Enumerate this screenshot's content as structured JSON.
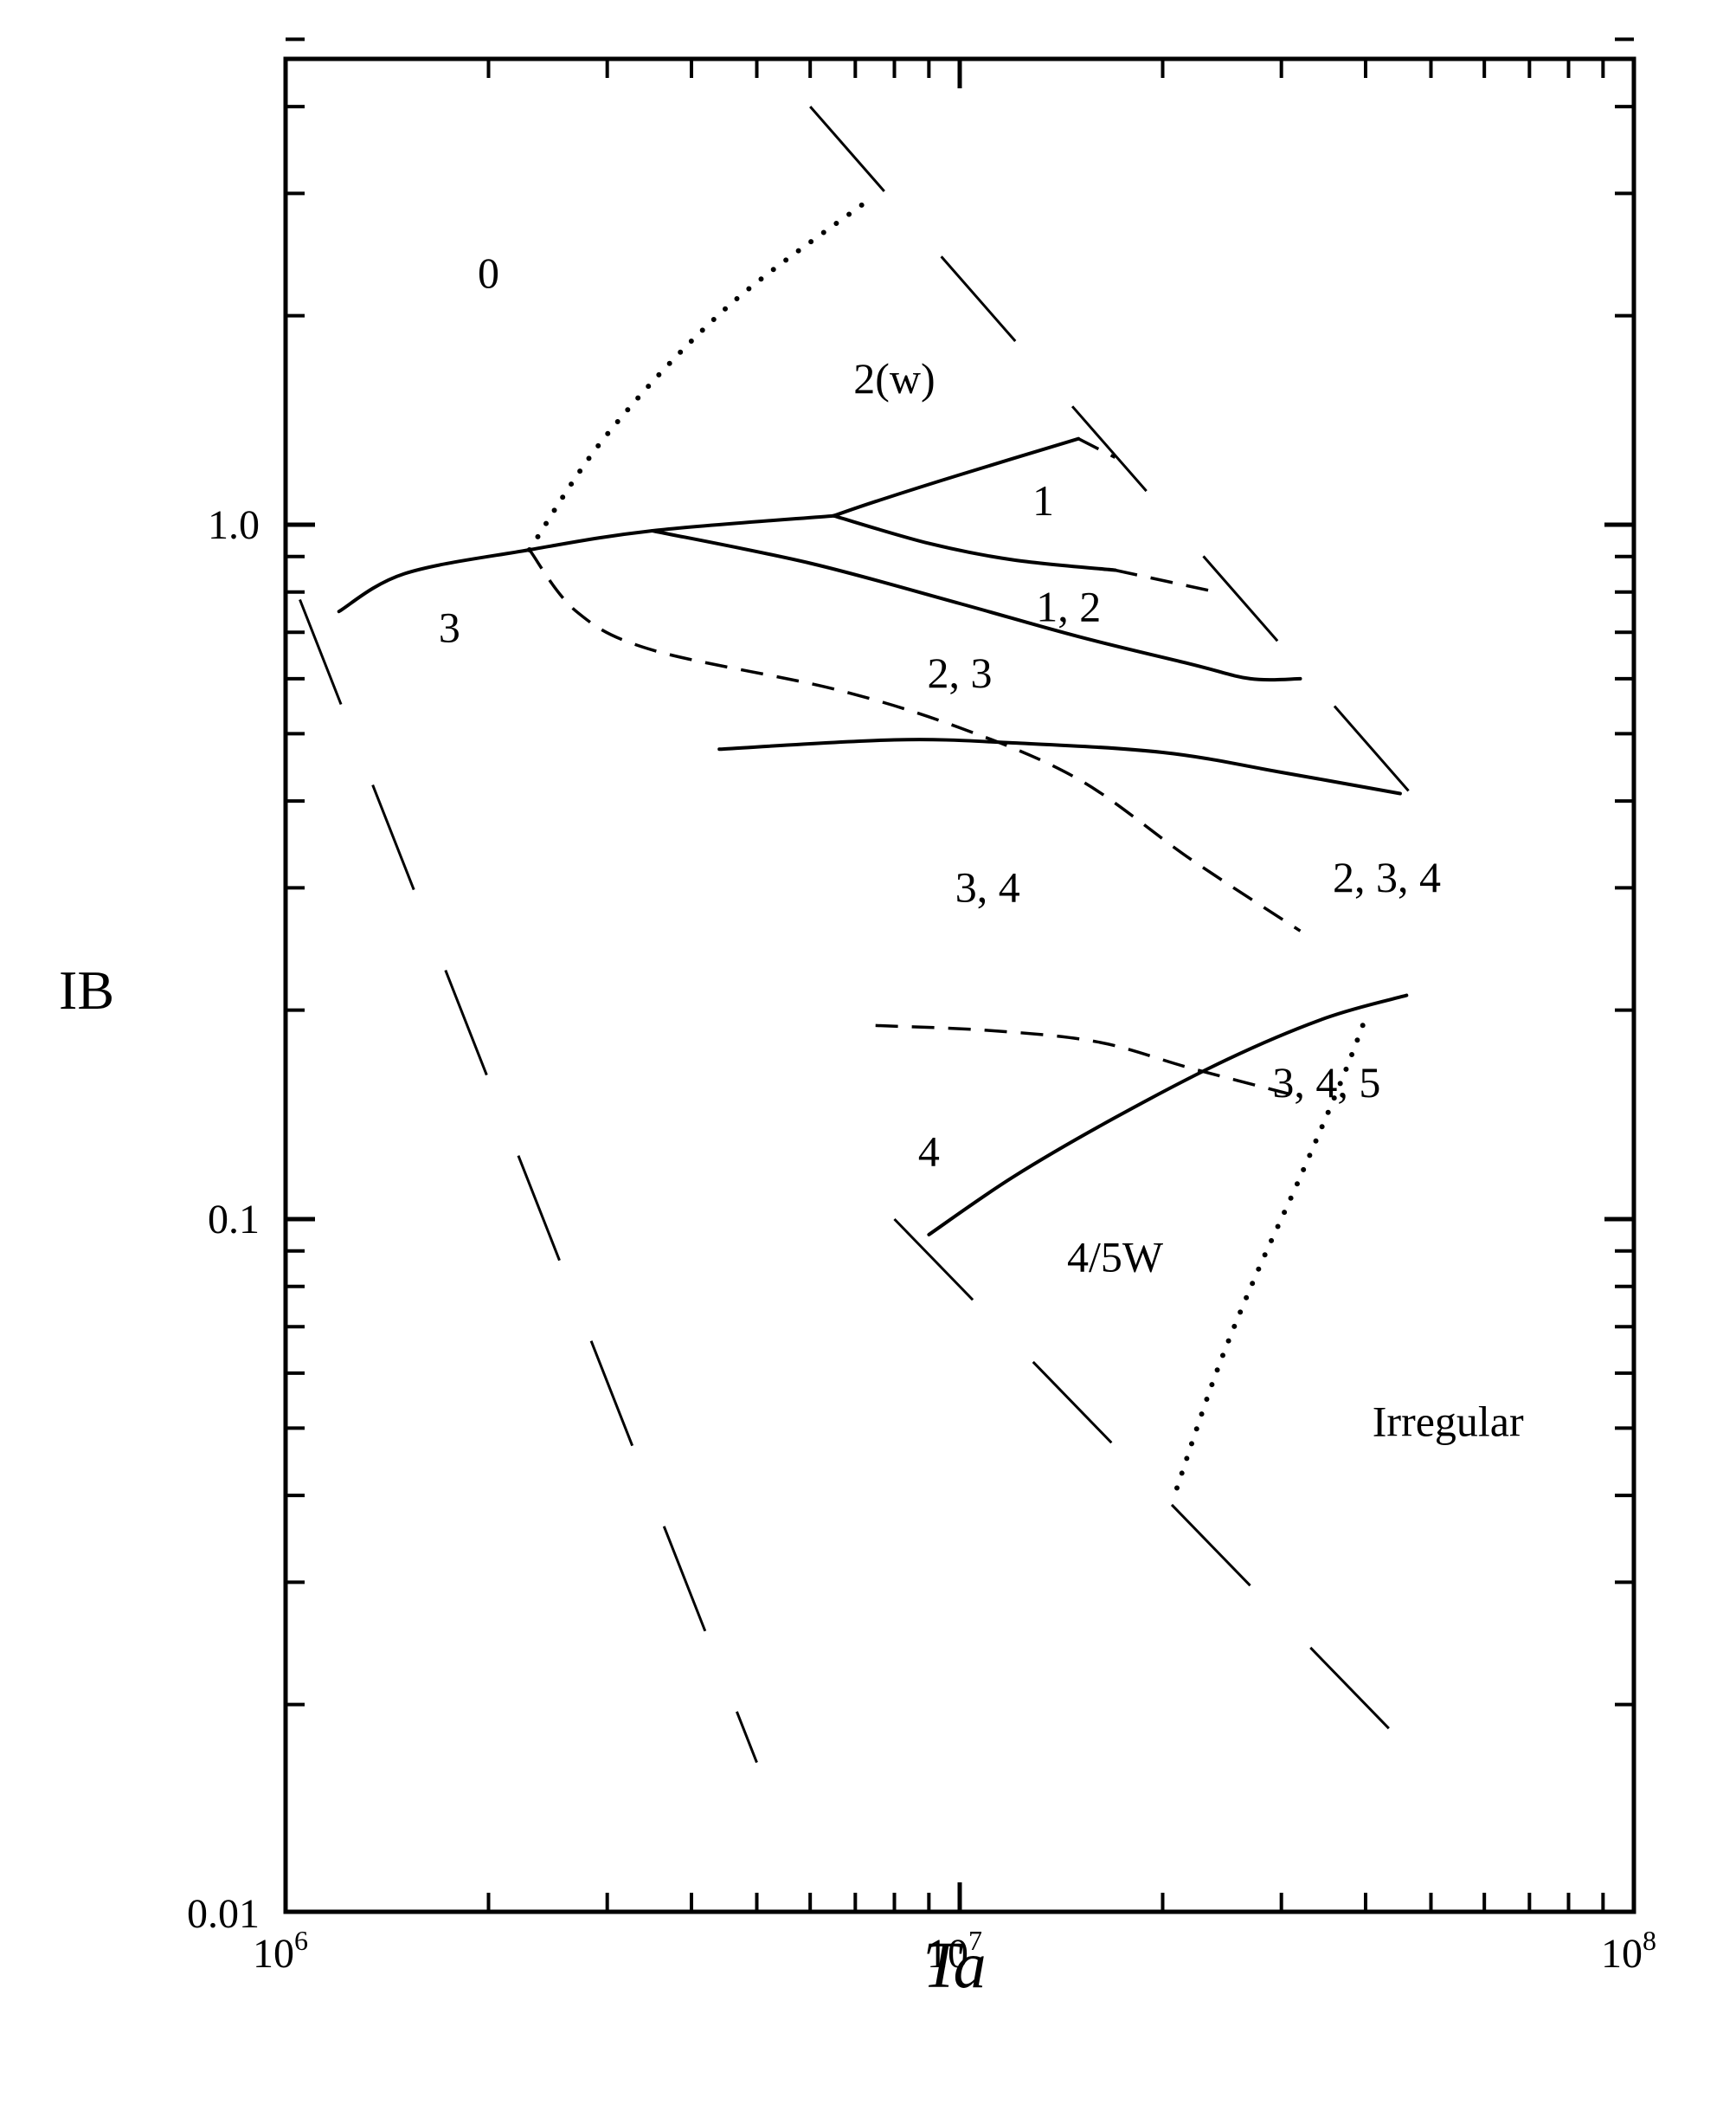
{
  "chart_data": {
    "type": "line",
    "xlabel": "Ta",
    "ylabel": "IB",
    "xscale": "log",
    "yscale": "log",
    "xlim": [
      1000000,
      100000000
    ],
    "ylim": [
      0.01,
      5.5
    ],
    "x_ticks": [
      {
        "value": 1000000,
        "base": "10",
        "exp": "6"
      },
      {
        "value": 10000000,
        "base": "10",
        "exp": "7"
      },
      {
        "value": 100000000,
        "base": "10",
        "exp": "8"
      }
    ],
    "y_ticks": [
      {
        "value": 0.01,
        "label": "0.01"
      },
      {
        "value": 0.1,
        "label": "0.1"
      },
      {
        "value": 1.0,
        "label": "1.0"
      }
    ],
    "grid": false,
    "curves": [
      {
        "style": "solid",
        "x": [
          1200000,
          1500000,
          2300000,
          3500000,
          6500000
        ],
        "y": [
          0.75,
          0.85,
          0.92,
          0.98,
          1.03
        ]
      },
      {
        "style": "solid",
        "x": [
          6500000,
          7500000,
          10000000,
          15000000
        ],
        "y": [
          1.03,
          1.08,
          1.18,
          1.33
        ]
      },
      {
        "style": "dashed",
        "x": [
          15000000,
          17000000
        ],
        "y": [
          1.33,
          1.25
        ]
      },
      {
        "style": "solid",
        "x": [
          6500000,
          9000000,
          12000000,
          17000000
        ],
        "y": [
          1.03,
          0.94,
          0.89,
          0.86
        ]
      },
      {
        "style": "dashed",
        "x": [
          17000000,
          24000000
        ],
        "y": [
          0.86,
          0.8
        ]
      },
      {
        "style": "solid",
        "x": [
          3500000,
          6000000,
          10000000,
          15000000,
          22000000,
          27000000,
          32000000
        ],
        "y": [
          0.98,
          0.88,
          0.77,
          0.69,
          0.63,
          0.6,
          0.6
        ]
      },
      {
        "style": "dashed",
        "x": [
          2300000,
          2700000,
          3500000,
          6500000,
          10000000,
          15000000,
          22000000,
          32000000
        ],
        "y": [
          0.92,
          0.75,
          0.66,
          0.58,
          0.51,
          0.43,
          0.33,
          0.26
        ]
      },
      {
        "style": "solid",
        "x": [
          4400000,
          8000000,
          12000000,
          20000000,
          30000000,
          45000000
        ],
        "y": [
          0.475,
          0.49,
          0.485,
          0.47,
          0.44,
          0.41
        ]
      },
      {
        "style": "dashed",
        "x": [
          7500000,
          11000000,
          16000000,
          22000000,
          32000000
        ],
        "y": [
          0.19,
          0.187,
          0.18,
          0.165,
          0.15
        ]
      },
      {
        "style": "solid",
        "x": [
          9000000,
          12000000,
          17000000,
          25000000,
          35000000,
          46000000
        ],
        "y": [
          0.095,
          0.115,
          0.14,
          0.17,
          0.195,
          0.21
        ]
      },
      {
        "style": "dotted",
        "x": [
          2300000,
          3000000,
          4500000,
          7200000
        ],
        "y": [
          0.92,
          1.35,
          2.05,
          2.9
        ]
      },
      {
        "style": "dotted",
        "x": [
          21000000,
          24000000,
          27500000,
          32000000,
          37000000,
          40000000
        ],
        "y": [
          0.041,
          0.06,
          0.083,
          0.115,
          0.16,
          0.195
        ]
      },
      {
        "style": "long-dash",
        "x": [
          1050000,
          5000000
        ],
        "y": [
          0.78,
          0.0165
        ]
      },
      {
        "style": "long-dash",
        "x": [
          6000000,
          50000000
        ],
        "y": [
          4.0,
          0.38
        ]
      },
      {
        "style": "long-dash",
        "x": [
          8000000,
          50000000
        ],
        "y": [
          0.1,
          0.016
        ]
      }
    ],
    "regions": [
      {
        "label": "0",
        "x": 2000000,
        "y": 2.3
      },
      {
        "label": "2(w)",
        "x": 8000000,
        "y": 1.62
      },
      {
        "label": "1",
        "x": 13300000,
        "y": 1.08
      },
      {
        "label": "1, 2",
        "x": 14500000,
        "y": 0.76
      },
      {
        "label": "3",
        "x": 1750000,
        "y": 0.71
      },
      {
        "label": "2, 3",
        "x": 10000000,
        "y": 0.61
      },
      {
        "label": "3, 4",
        "x": 11000000,
        "y": 0.3
      },
      {
        "label": "2, 3, 4",
        "x": 43000000,
        "y": 0.31
      },
      {
        "label": "3, 4, 5",
        "x": 35000000,
        "y": 0.157
      },
      {
        "label": "4",
        "x": 9000000,
        "y": 0.125
      },
      {
        "label": "4/5W",
        "x": 17000000,
        "y": 0.088
      },
      {
        "label": "Irregular",
        "x": 53000000,
        "y": 0.051
      }
    ]
  }
}
